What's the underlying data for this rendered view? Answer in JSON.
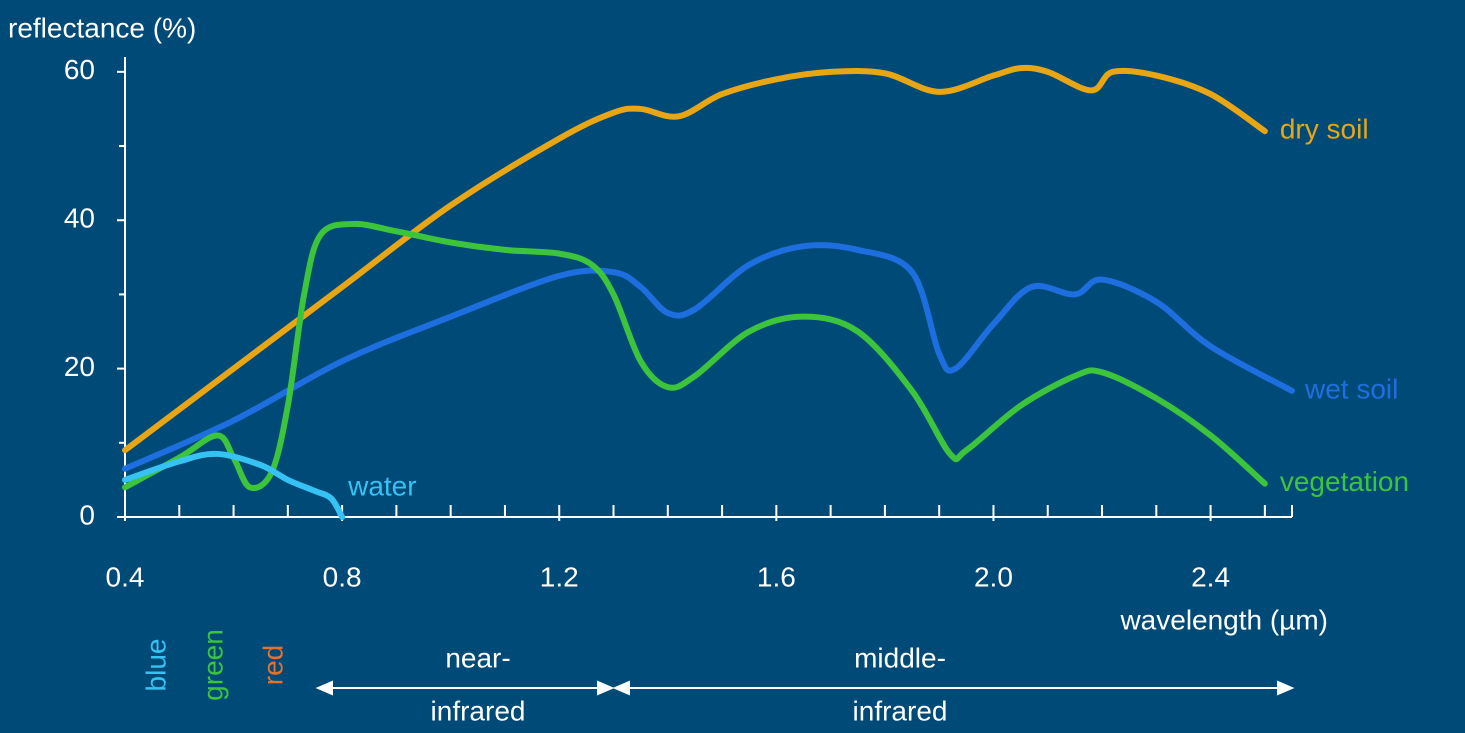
{
  "chart_data": {
    "type": "line",
    "y_label": "reflectance (%)",
    "x_label": "wavelength (µm)",
    "xlim": [
      0.4,
      2.55
    ],
    "ylim": [
      0,
      62
    ],
    "xticks": [
      0.4,
      0.8,
      1.2,
      1.6,
      {
        "value": 2,
        "label": "2.0"
      },
      2.4
    ],
    "xminor_ticks": [
      0.5,
      0.6,
      0.7,
      0.9,
      1.0,
      1.1,
      1.3,
      1.4,
      1.5,
      1.7,
      1.8,
      1.9,
      2.1,
      2.2,
      2.3,
      2.5
    ],
    "yticks": [
      0,
      20,
      40,
      60
    ],
    "yminor_ticks": [
      10,
      30,
      50
    ],
    "series": [
      {
        "name": "dry soil",
        "color": "#e8a614",
        "x": [
          0.4,
          0.6,
          0.8,
          1.0,
          1.2,
          1.3,
          1.35,
          1.42,
          1.5,
          1.6,
          1.7,
          1.8,
          1.9,
          2.0,
          2.05,
          2.1,
          2.18,
          2.22,
          2.3,
          2.4,
          2.5
        ],
        "values": [
          9,
          20,
          31,
          42,
          51,
          54.5,
          55,
          54,
          57,
          59,
          60,
          59.8,
          57.3,
          59.5,
          60.5,
          60,
          57.5,
          60,
          59.5,
          57,
          52
        ]
      },
      {
        "name": "wet soil",
        "color": "#1d6fe0",
        "x": [
          0.4,
          0.6,
          0.8,
          1.0,
          1.2,
          1.3,
          1.35,
          1.4,
          1.45,
          1.55,
          1.65,
          1.75,
          1.85,
          1.9,
          1.93,
          2.0,
          2.07,
          2.15,
          2.2,
          2.3,
          2.4,
          2.55
        ],
        "values": [
          6.5,
          13,
          21,
          27,
          32.5,
          33,
          31,
          27.5,
          28,
          34,
          36.5,
          36,
          33,
          22,
          20,
          26,
          31,
          30,
          32,
          29,
          23,
          17
        ]
      },
      {
        "name": "vegetation",
        "color": "#3cc43c",
        "x": [
          0.4,
          0.5,
          0.57,
          0.6,
          0.63,
          0.67,
          0.7,
          0.73,
          0.76,
          0.82,
          0.9,
          1.0,
          1.1,
          1.2,
          1.26,
          1.3,
          1.35,
          1.4,
          1.45,
          1.55,
          1.65,
          1.75,
          1.85,
          1.92,
          1.95,
          2.05,
          2.15,
          2.2,
          2.3,
          2.4,
          2.5
        ],
        "values": [
          4,
          8,
          11,
          8,
          4,
          6,
          15,
          30,
          38,
          39.5,
          38.5,
          37,
          36,
          35.5,
          34,
          30,
          21,
          17.5,
          19,
          25,
          27,
          25,
          17,
          8.5,
          9,
          15,
          19,
          19.5,
          16,
          11,
          4.5
        ]
      },
      {
        "name": "water",
        "color": "#36c2f2",
        "x": [
          0.4,
          0.5,
          0.57,
          0.65,
          0.7,
          0.75,
          0.78,
          0.8
        ],
        "values": [
          5,
          7.5,
          8.5,
          7,
          5,
          3.5,
          2.5,
          0
        ]
      }
    ],
    "bands": [
      {
        "label": "blue",
        "color": "#36c2f2"
      },
      {
        "label": "green",
        "color": "#3cc43c"
      },
      {
        "label": "red",
        "color": "#e8702a"
      }
    ],
    "regions": [
      [
        "near-",
        "infrared"
      ],
      [
        "middle-",
        "infrared"
      ]
    ]
  }
}
